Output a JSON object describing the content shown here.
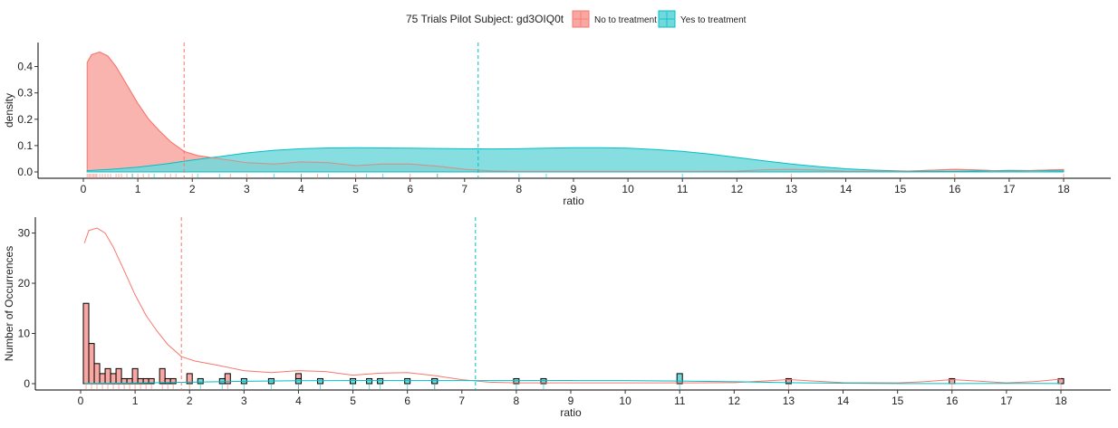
{
  "legend": {
    "title": "75 Trials Pilot Subject:  gd3OIQ0t",
    "items": [
      {
        "label": "No to treatment",
        "color": "#F8766D",
        "fill": "#F8A7A2"
      },
      {
        "label": "Yes to treatment",
        "color": "#00BFC4",
        "fill": "#71D8DC"
      }
    ]
  },
  "chart_data": [
    {
      "type": "area",
      "xlabel": "ratio",
      "ylabel": "density",
      "xlim": [
        0,
        18
      ],
      "ylim": [
        0,
        0.45
      ],
      "xticks": [
        "0",
        "1",
        "2",
        "3",
        "4",
        "5",
        "6",
        "7",
        "8",
        "9",
        "10",
        "11",
        "12",
        "13",
        "14",
        "15",
        "16",
        "17",
        "18"
      ],
      "yticks": [
        "0.0",
        "0.1",
        "0.2",
        "0.3",
        "0.4"
      ],
      "grid": false,
      "vlines": [
        {
          "series": "No to treatment",
          "x": 1.85
        },
        {
          "series": "Yes to treatment",
          "x": 7.25
        }
      ],
      "series": [
        {
          "name": "No to treatment",
          "x": [
            0.07,
            0.15,
            0.3,
            0.45,
            0.6,
            0.8,
            1.0,
            1.2,
            1.4,
            1.6,
            1.85,
            2.1,
            2.5,
            3.0,
            3.5,
            4.0,
            4.5,
            5.0,
            5.5,
            6.0,
            6.5,
            7.0,
            7.5,
            8.0,
            9.0,
            10.0,
            11.0,
            12.0,
            12.5,
            13.0,
            13.5,
            14.0,
            15.0,
            15.5,
            16.0,
            16.5,
            17.0,
            17.5,
            18.0
          ],
          "values": [
            0.415,
            0.445,
            0.455,
            0.44,
            0.4,
            0.33,
            0.26,
            0.2,
            0.155,
            0.115,
            0.078,
            0.062,
            0.05,
            0.035,
            0.03,
            0.038,
            0.035,
            0.024,
            0.03,
            0.03,
            0.022,
            0.01,
            0.004,
            0.002,
            0.002,
            0.002,
            0.002,
            0.003,
            0.008,
            0.01,
            0.007,
            0.003,
            0.002,
            0.006,
            0.01,
            0.007,
            0.002,
            0.006,
            0.009
          ]
        },
        {
          "name": "Yes to treatment",
          "x": [
            0.07,
            0.5,
            1.0,
            1.5,
            2.0,
            2.5,
            3.0,
            3.5,
            4.0,
            4.5,
            5.0,
            5.5,
            6.0,
            6.5,
            7.0,
            7.5,
            8.0,
            8.5,
            9.0,
            9.5,
            10.0,
            10.5,
            11.0,
            11.5,
            12.0,
            12.5,
            13.0,
            13.5,
            14.0,
            14.5,
            15.0,
            15.5,
            16.0,
            16.5,
            17.0,
            17.5,
            18.0
          ],
          "values": [
            0.005,
            0.01,
            0.018,
            0.03,
            0.045,
            0.058,
            0.072,
            0.082,
            0.088,
            0.091,
            0.092,
            0.091,
            0.09,
            0.089,
            0.088,
            0.087,
            0.088,
            0.09,
            0.092,
            0.092,
            0.09,
            0.085,
            0.078,
            0.068,
            0.055,
            0.042,
            0.03,
            0.02,
            0.012,
            0.007,
            0.004,
            0.002,
            0.002,
            0.004,
            0.006,
            0.005,
            0.004
          ]
        }
      ],
      "rugs": [
        {
          "series": "No to treatment",
          "x": [
            0.07,
            0.1,
            0.12,
            0.15,
            0.18,
            0.2,
            0.23,
            0.25,
            0.3,
            0.35,
            0.4,
            0.45,
            0.5,
            0.6,
            0.65,
            0.7,
            0.8,
            0.9,
            1.0,
            1.1,
            1.2,
            1.5,
            1.6,
            1.7,
            2.0,
            2.7,
            3.0,
            4.0,
            4.3,
            5.0,
            6.0,
            6.5,
            13.0,
            16.0,
            18.0
          ]
        },
        {
          "series": "Yes to treatment",
          "x": [
            0.9,
            1.3,
            2.1,
            2.5,
            3.5,
            4.0,
            4.5,
            5.2,
            5.5,
            6.5,
            8.0,
            8.5,
            11.0
          ]
        }
      ]
    },
    {
      "type": "bar",
      "xlabel": "ratio",
      "ylabel": "Number of Occurrences",
      "xlim": [
        0,
        18
      ],
      "ylim": [
        0,
        31
      ],
      "xticks": [
        "0",
        "1",
        "2",
        "3",
        "4",
        "5",
        "6",
        "7",
        "8",
        "9",
        "10",
        "11",
        "12",
        "13",
        "14",
        "15",
        "16",
        "17",
        "18"
      ],
      "yticks": [
        "0",
        "10",
        "20",
        "30"
      ],
      "grid": false,
      "binwidth": 0.1,
      "vlines": [
        {
          "series": "No to treatment",
          "x": 1.85
        },
        {
          "series": "Yes to treatment",
          "x": 7.25
        }
      ],
      "series": [
        {
          "name": "No to treatment",
          "bins": [
            [
              0.1,
              16
            ],
            [
              0.2,
              8
            ],
            [
              0.3,
              4
            ],
            [
              0.4,
              2
            ],
            [
              0.5,
              3
            ],
            [
              0.6,
              2
            ],
            [
              0.7,
              3
            ],
            [
              0.8,
              1
            ],
            [
              0.9,
              1
            ],
            [
              1.0,
              3
            ],
            [
              1.1,
              1
            ],
            [
              1.2,
              1
            ],
            [
              1.3,
              1
            ],
            [
              1.5,
              3
            ],
            [
              1.6,
              1
            ],
            [
              1.7,
              1
            ],
            [
              2.0,
              2
            ],
            [
              2.7,
              2
            ],
            [
              4.0,
              2
            ],
            [
              6.5,
              1
            ],
            [
              13.0,
              1
            ],
            [
              16.0,
              1
            ],
            [
              18.0,
              1
            ]
          ]
        },
        {
          "name": "Yes to treatment",
          "bins": [
            [
              2.2,
              1
            ],
            [
              2.6,
              1
            ],
            [
              3.0,
              1
            ],
            [
              3.5,
              1
            ],
            [
              4.0,
              1
            ],
            [
              4.4,
              1
            ],
            [
              5.0,
              1
            ],
            [
              5.3,
              1
            ],
            [
              5.5,
              1
            ],
            [
              6.0,
              1
            ],
            [
              6.5,
              1
            ],
            [
              8.0,
              1
            ],
            [
              8.5,
              1
            ],
            [
              11.0,
              2
            ]
          ]
        }
      ],
      "density_curves": [
        {
          "series": "No to treatment",
          "x": [
            0.07,
            0.15,
            0.3,
            0.45,
            0.6,
            0.8,
            1.0,
            1.2,
            1.4,
            1.6,
            1.85,
            2.1,
            2.5,
            3.0,
            3.5,
            4.0,
            4.5,
            5.0,
            5.5,
            6.0,
            6.5,
            7.0,
            7.5,
            8.0,
            9.0,
            10.0,
            11.0,
            12.0,
            12.5,
            13.0,
            13.5,
            14.0,
            15.0,
            15.5,
            16.0,
            16.5,
            17.0,
            17.5,
            18.0
          ],
          "values": [
            28.0,
            30.5,
            31.0,
            30.0,
            27.2,
            22.5,
            17.7,
            13.6,
            10.5,
            7.8,
            5.4,
            4.5,
            3.7,
            2.6,
            2.2,
            2.6,
            2.4,
            1.7,
            2.1,
            2.2,
            1.6,
            0.8,
            0.3,
            0.15,
            0.15,
            0.15,
            0.15,
            0.2,
            0.5,
            0.8,
            0.5,
            0.2,
            0.15,
            0.4,
            0.8,
            0.5,
            0.15,
            0.4,
            0.9
          ]
        },
        {
          "series": "Yes to treatment",
          "x": [
            0.07,
            1.0,
            2.0,
            3.0,
            4.0,
            5.0,
            6.0,
            7.0,
            8.0,
            9.0,
            10.0,
            11.0,
            12.0,
            13.0,
            14.0,
            15.0,
            16.0,
            17.0,
            18.0
          ],
          "values": [
            0.05,
            0.12,
            0.3,
            0.48,
            0.58,
            0.62,
            0.6,
            0.6,
            0.6,
            0.62,
            0.6,
            0.52,
            0.38,
            0.2,
            0.08,
            0.03,
            0.02,
            0.04,
            0.03
          ]
        }
      ]
    }
  ]
}
